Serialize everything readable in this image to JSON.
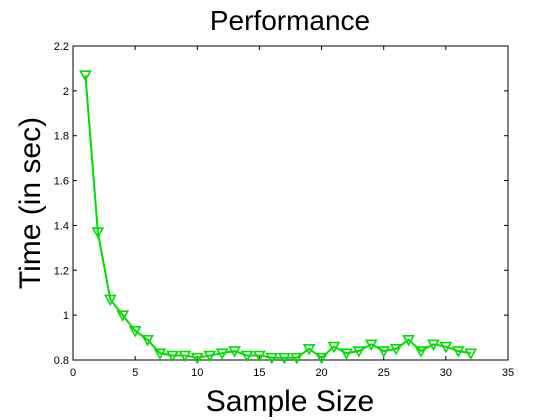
{
  "chart_data": {
    "type": "line",
    "title": "Performance",
    "xlabel": "Sample Size",
    "ylabel": "Time (in sec)",
    "xlim": [
      0,
      35
    ],
    "ylim": [
      0.8,
      2.2
    ],
    "xticks": [
      0,
      5,
      10,
      15,
      20,
      25,
      30,
      35
    ],
    "yticks": [
      0.8,
      1,
      1.2,
      1.4,
      1.6,
      1.8,
      2,
      2.2
    ],
    "xtick_labels": [
      "0",
      "5",
      "10",
      "15",
      "20",
      "25",
      "30",
      "35"
    ],
    "ytick_labels": [
      "0.8",
      "1",
      "1.2",
      "1.4",
      "1.6",
      "1.8",
      "2",
      "2.2"
    ],
    "grid": false,
    "legend": false,
    "series": [
      {
        "color": "#00dd00",
        "marker": "triangle-down",
        "x": [
          1,
          2,
          3,
          4,
          5,
          6,
          7,
          8,
          9,
          10,
          11,
          12,
          13,
          14,
          15,
          16,
          17,
          18,
          19,
          20,
          21,
          22,
          23,
          24,
          25,
          26,
          27,
          28,
          29,
          30,
          31,
          32
        ],
        "y": [
          2.07,
          1.37,
          1.07,
          1.0,
          0.93,
          0.89,
          0.83,
          0.82,
          0.82,
          0.81,
          0.82,
          0.83,
          0.84,
          0.82,
          0.82,
          0.81,
          0.81,
          0.81,
          0.85,
          0.81,
          0.86,
          0.83,
          0.84,
          0.87,
          0.84,
          0.85,
          0.89,
          0.84,
          0.87,
          0.86,
          0.84,
          0.83
        ]
      }
    ]
  }
}
